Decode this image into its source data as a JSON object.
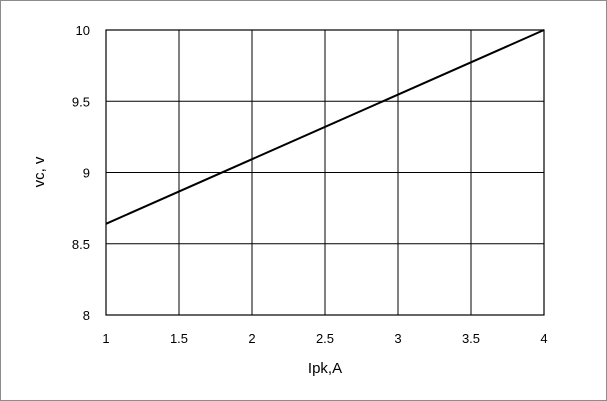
{
  "chart_data": {
    "type": "line",
    "title": "",
    "xlabel": "Ipk,A",
    "ylabel": "vc, v",
    "xlim": [
      1,
      4
    ],
    "ylim": [
      8,
      10
    ],
    "grid": true,
    "x_ticks": [
      {
        "value": 1,
        "label": "1"
      },
      {
        "value": 1.5,
        "label": "1.5"
      },
      {
        "value": 2,
        "label": "2"
      },
      {
        "value": 2.5,
        "label": "2.5"
      },
      {
        "value": 3,
        "label": "3"
      },
      {
        "value": 3.5,
        "label": "3.5"
      },
      {
        "value": 4,
        "label": "4"
      }
    ],
    "y_ticks": [
      {
        "value": 8,
        "label": "8"
      },
      {
        "value": 8.5,
        "label": "8.5"
      },
      {
        "value": 9,
        "label": "9"
      },
      {
        "value": 9.5,
        "label": "9.5"
      },
      {
        "value": 10,
        "label": "10"
      }
    ],
    "series": [
      {
        "color": "#000000",
        "x": [
          1,
          4
        ],
        "y": [
          8.64,
          10.0
        ]
      }
    ]
  }
}
